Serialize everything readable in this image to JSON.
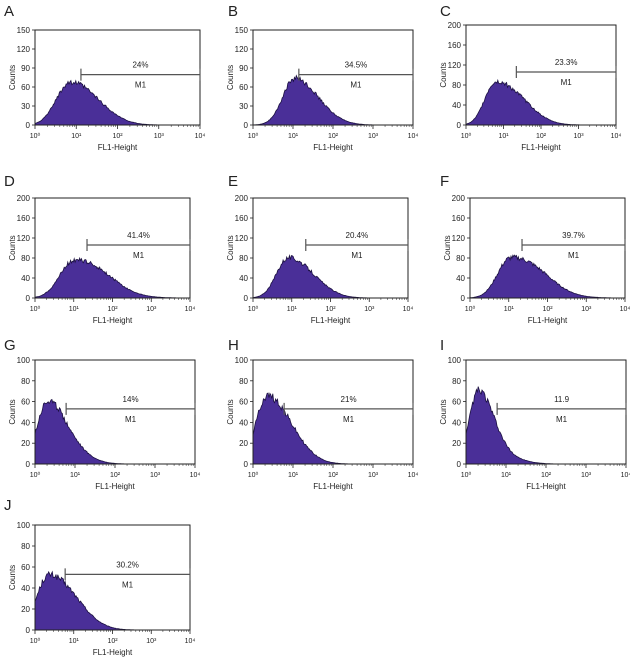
{
  "chart_data": [
    {
      "type": "area",
      "panel_label": "A",
      "xlabel": "FL1-Height",
      "ylabel": "Counts",
      "xscale": "log",
      "x_ticks": [
        1,
        10,
        100,
        1000,
        10000
      ],
      "x_tick_labels": [
        "10⁰",
        "10¹",
        "10²",
        "10³",
        "10⁴"
      ],
      "ylim": [
        0,
        150
      ],
      "y_ticks": [
        "0",
        "30",
        "60",
        "90",
        "120",
        "150"
      ],
      "gate": {
        "label": "M1",
        "percent": "24%",
        "from": 13,
        "to": 10000
      },
      "peak_x": 7,
      "peak_y": 67,
      "sigma": 0.33,
      "tail": 0.55
    },
    {
      "type": "area",
      "panel_label": "B",
      "xlabel": "FL1-Height",
      "ylabel": "Counts",
      "xscale": "log",
      "x_ticks": [
        1,
        10,
        100,
        1000,
        10000
      ],
      "x_tick_labels": [
        "10⁰",
        "10¹",
        "10²",
        "10³",
        "10⁴"
      ],
      "ylim": [
        0,
        150
      ],
      "y_ticks": [
        "0",
        "30",
        "60",
        "90",
        "120",
        "150"
      ],
      "gate": {
        "label": "M1",
        "percent": "34.5%",
        "from": 14,
        "to": 10000
      },
      "peak_x": 11,
      "peak_y": 73,
      "sigma": 0.3,
      "tail": 0.5
    },
    {
      "type": "area",
      "panel_label": "C",
      "xlabel": "FL1-Height",
      "ylabel": "Counts",
      "xscale": "log",
      "x_ticks": [
        1,
        10,
        100,
        1000,
        10000
      ],
      "x_tick_labels": [
        "10⁰",
        "10¹",
        "10²",
        "10³",
        "10⁴"
      ],
      "ylim": [
        0,
        200
      ],
      "y_ticks": [
        "0",
        "40",
        "80",
        "120",
        "160",
        "200"
      ],
      "gate": {
        "label": "M1",
        "percent": "23.3%",
        "from": 22,
        "to": 10000
      },
      "peak_x": 6,
      "peak_y": 85,
      "sigma": 0.28,
      "tail": 0.85
    },
    {
      "type": "area",
      "panel_label": "D",
      "xlabel": "FL1-Height",
      "ylabel": "Counts",
      "xscale": "log",
      "x_ticks": [
        1,
        10,
        100,
        1000,
        10000
      ],
      "x_tick_labels": [
        "10⁰",
        "10¹",
        "10²",
        "10³",
        "10⁴"
      ],
      "ylim": [
        0,
        200
      ],
      "y_ticks": [
        "0",
        "40",
        "80",
        "120",
        "160",
        "200"
      ],
      "gate": {
        "label": "M1",
        "percent": "41.4%",
        "from": 22,
        "to": 10000
      },
      "peak_x": 10,
      "peak_y": 75,
      "sigma": 0.36,
      "tail": 0.75
    },
    {
      "type": "area",
      "panel_label": "E",
      "xlabel": "FL1-Height",
      "ylabel": "Counts",
      "xscale": "log",
      "x_ticks": [
        1,
        10,
        100,
        1000,
        10000
      ],
      "x_tick_labels": [
        "10⁰",
        "10¹",
        "10²",
        "10³",
        "10⁴"
      ],
      "ylim": [
        0,
        200
      ],
      "y_ticks": [
        "0",
        "40",
        "80",
        "120",
        "160",
        "200"
      ],
      "gate": {
        "label": "M1",
        "percent": "20.4%",
        "from": 23,
        "to": 10000
      },
      "peak_x": 8,
      "peak_y": 80,
      "sigma": 0.3,
      "tail": 0.6
    },
    {
      "type": "area",
      "panel_label": "F",
      "xlabel": "FL1-Height",
      "ylabel": "Counts",
      "xscale": "log",
      "x_ticks": [
        1,
        10,
        100,
        1000,
        10000
      ],
      "x_tick_labels": [
        "10⁰",
        "10¹",
        "10²",
        "10³",
        "10⁴"
      ],
      "ylim": [
        0,
        200
      ],
      "y_ticks": [
        "0",
        "40",
        "80",
        "120",
        "160",
        "200"
      ],
      "gate": {
        "label": "M1",
        "percent": "39.7%",
        "from": 22,
        "to": 10000
      },
      "peak_x": 11,
      "peak_y": 80,
      "sigma": 0.33,
      "tail": 0.85
    },
    {
      "type": "area",
      "panel_label": "G",
      "xlabel": "FL1-Height",
      "ylabel": "Counts",
      "xscale": "log",
      "x_ticks": [
        1,
        10,
        100,
        1000,
        10000
      ],
      "x_tick_labels": [
        "10⁰",
        "10¹",
        "10²",
        "10³",
        "10⁴"
      ],
      "ylim": [
        0,
        100
      ],
      "y_ticks": [
        "0",
        "20",
        "40",
        "60",
        "80",
        "100"
      ],
      "gate": {
        "label": "M1",
        "percent": "14%",
        "from": 6,
        "to": 10000
      },
      "peak_x": 2,
      "peak_y": 60,
      "sigma": 0.25,
      "tail": 0.6
    },
    {
      "type": "area",
      "panel_label": "H",
      "xlabel": "FL1-Height",
      "ylabel": "Counts",
      "xscale": "log",
      "x_ticks": [
        1,
        10,
        100,
        1000,
        10000
      ],
      "x_tick_labels": [
        "10⁰",
        "10¹",
        "10²",
        "10³",
        "10⁴"
      ],
      "ylim": [
        0,
        100
      ],
      "y_ticks": [
        "0",
        "20",
        "40",
        "60",
        "80",
        "100"
      ],
      "gate": {
        "label": "M1",
        "percent": "21%",
        "from": 6,
        "to": 10000
      },
      "peak_x": 2.2,
      "peak_y": 65,
      "sigma": 0.27,
      "tail": 0.65
    },
    {
      "type": "area",
      "panel_label": "I",
      "xlabel": "FL1-Height",
      "ylabel": "Counts",
      "xscale": "log",
      "x_ticks": [
        1,
        10,
        100,
        1000,
        10000
      ],
      "x_tick_labels": [
        "10⁰",
        "10¹",
        "10²",
        "10³",
        "10⁴"
      ],
      "ylim": [
        0,
        100
      ],
      "y_ticks": [
        "0",
        "20",
        "40",
        "60",
        "80",
        "100"
      ],
      "gate": {
        "label": "M1",
        "percent": "11.9",
        "from": 6,
        "to": 10000
      },
      "peak_x": 2,
      "peak_y": 70,
      "sigma": 0.22,
      "tail": 0.5
    },
    {
      "type": "area",
      "panel_label": "J",
      "xlabel": "FL1-Height",
      "ylabel": "Counts",
      "xscale": "log",
      "x_ticks": [
        1,
        10,
        100,
        1000,
        10000
      ],
      "x_tick_labels": [
        "10⁰",
        "10¹",
        "10²",
        "10³",
        "10⁴"
      ],
      "ylim": [
        0,
        100
      ],
      "y_ticks": [
        "0",
        "20",
        "40",
        "60",
        "80",
        "100"
      ],
      "gate": {
        "label": "M1",
        "percent": "30.2%",
        "from": 6,
        "to": 10000
      },
      "peak_x": 2.2,
      "peak_y": 52,
      "sigma": 0.3,
      "tail": 0.7
    }
  ],
  "colors": {
    "fill": "#4a2f98",
    "outline": "#1b1040",
    "axis": "#222222",
    "gate": "#555555"
  }
}
